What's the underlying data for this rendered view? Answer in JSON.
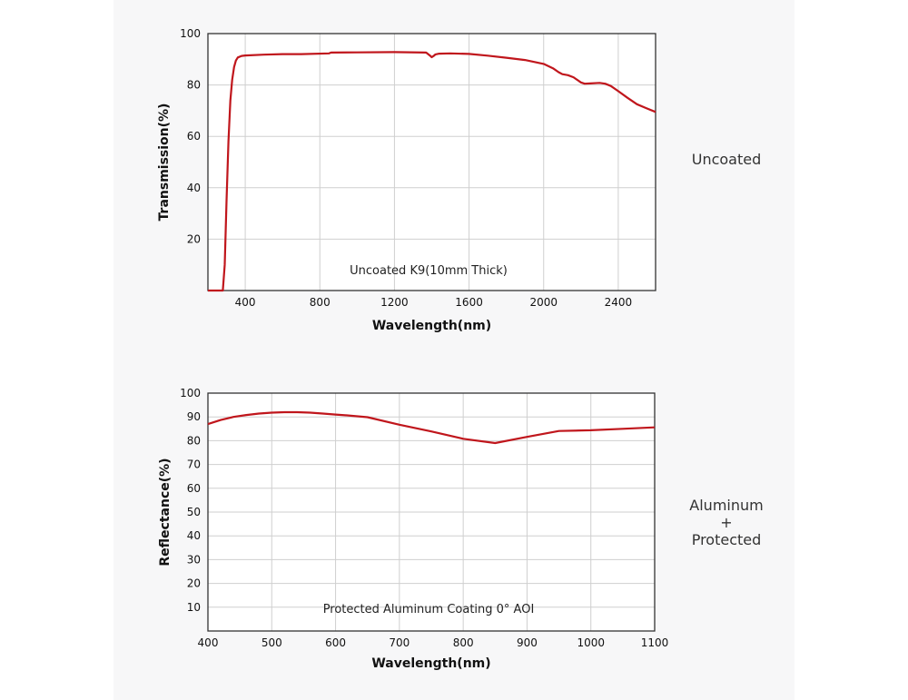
{
  "side_labels": {
    "top": "Uncoated",
    "bottom_line1": "Aluminum",
    "bottom_line2": "+",
    "bottom_line3": "Protected"
  },
  "colors": {
    "series": "#c0161c",
    "grid": "#cfcfcf",
    "frame": "#333333",
    "panel": "#f7f7f8"
  },
  "chart_data": [
    {
      "type": "line",
      "title": "",
      "xlabel": "Wavelength(nm)",
      "ylabel": "Transmission(%)",
      "annotation": "Uncoated K9(10mm Thick)",
      "xlim": [
        200,
        2600
      ],
      "ylim": [
        0,
        100
      ],
      "xticks": [
        400,
        800,
        1200,
        1600,
        2000,
        2400
      ],
      "yticks": [
        20,
        40,
        60,
        80,
        100
      ],
      "grid": true,
      "series": [
        {
          "x": [
            200,
            280,
            290,
            300,
            310,
            320,
            330,
            340,
            350,
            360,
            380,
            400,
            500,
            600,
            700,
            850,
            860,
            1000,
            1200,
            1370,
            1390,
            1400,
            1410,
            1420,
            1440,
            1500,
            1600,
            1700,
            1800,
            1900,
            2000,
            2050,
            2080,
            2100,
            2130,
            2160,
            2200,
            2220,
            2250,
            2300,
            2330,
            2360,
            2400,
            2450,
            2500,
            2550,
            2600
          ],
          "y": [
            0,
            0,
            10,
            35,
            58,
            74,
            82,
            87,
            89.5,
            90.7,
            91.3,
            91.5,
            91.8,
            92,
            92,
            92.3,
            92.6,
            92.7,
            92.8,
            92.6,
            91.5,
            90.8,
            91.3,
            91.9,
            92.2,
            92.3,
            92.1,
            91.4,
            90.6,
            89.7,
            88.2,
            86.5,
            85,
            84.2,
            83.8,
            83,
            81,
            80.5,
            80.6,
            80.8,
            80.5,
            79.6,
            77.6,
            75,
            72.5,
            71,
            69.5
          ]
        }
      ]
    },
    {
      "type": "line",
      "title": "",
      "xlabel": "Wavelength(nm)",
      "ylabel": "Reflectance(%)",
      "annotation": "Protected Aluminum Coating  0°  AOI",
      "xlim": [
        400,
        1100
      ],
      "ylim": [
        0,
        100
      ],
      "xticks": [
        400,
        500,
        600,
        700,
        800,
        900,
        1000,
        1100
      ],
      "yticks": [
        10,
        20,
        30,
        40,
        50,
        60,
        70,
        80,
        90,
        100
      ],
      "grid": true,
      "series": [
        {
          "x": [
            400,
            420,
            440,
            460,
            480,
            500,
            520,
            540,
            560,
            580,
            600,
            620,
            650,
            700,
            750,
            800,
            850,
            900,
            950,
            1000,
            1050,
            1100
          ],
          "y": [
            87,
            88.7,
            90,
            90.8,
            91.4,
            91.8,
            92,
            92,
            91.8,
            91.4,
            91,
            90.6,
            89.9,
            86.7,
            83.9,
            80.8,
            79,
            81.6,
            84.1,
            84.4,
            85,
            85.6
          ]
        }
      ]
    }
  ]
}
